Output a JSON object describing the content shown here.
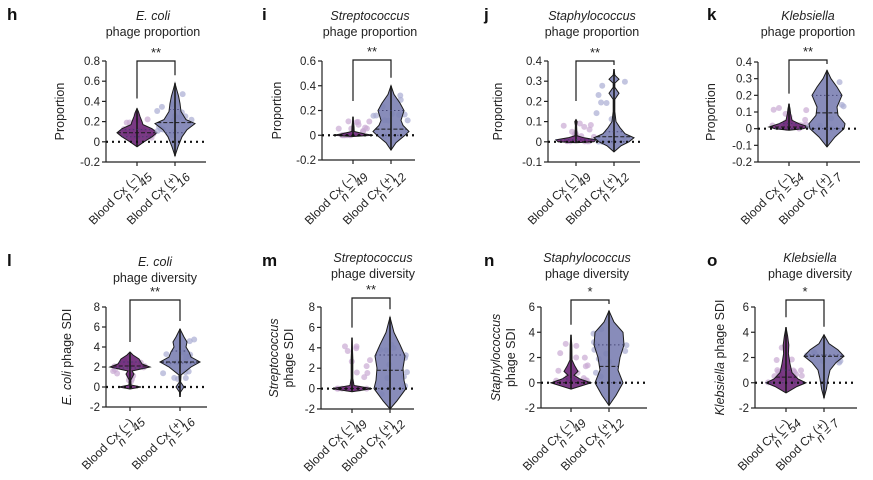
{
  "colors": {
    "neg_fill": "#6b2577",
    "neg_points": "#c9a9d3",
    "pos_fill": "#7b7fb3",
    "pos_points": "#a9acd3",
    "axis": "#222222"
  },
  "chart_data": [
    {
      "panel": "h",
      "type": "violin",
      "title_italic": "E. coli",
      "title_rest": "phage proportion",
      "ylabel": "Proportion",
      "ylabel_italic": "",
      "ylim": [
        -0.2,
        0.8
      ],
      "yticks": [
        -0.2,
        0,
        0.2,
        0.4,
        0.6,
        0.8
      ],
      "ytick_labels": [
        "-0.2",
        "0",
        "0.2",
        "0.4",
        "0.6",
        "0.8"
      ],
      "significance": "**",
      "categories": [
        {
          "label": "Blood Cx (−)",
          "n_label": "n = 45",
          "n": 45,
          "median": 0.09,
          "quartiles": [
            0.05,
            0.12
          ],
          "min": -0.05,
          "max": 0.33,
          "shape": [
            [
              -0.05,
              0.0
            ],
            [
              0.0,
              0.35
            ],
            [
              0.05,
              0.75
            ],
            [
              0.09,
              1.0
            ],
            [
              0.13,
              0.75
            ],
            [
              0.17,
              0.3
            ],
            [
              0.2,
              0.25
            ],
            [
              0.25,
              0.15
            ],
            [
              0.3,
              0.07
            ],
            [
              0.33,
              0.0
            ]
          ]
        },
        {
          "label": "Blood Cx (+)",
          "n_label": "n = 16",
          "n": 16,
          "median": 0.19,
          "quartiles": [
            0.09,
            0.32
          ],
          "min": -0.14,
          "max": 0.58,
          "shape": [
            [
              -0.14,
              0.0
            ],
            [
              -0.05,
              0.15
            ],
            [
              0.05,
              0.35
            ],
            [
              0.12,
              0.6
            ],
            [
              0.18,
              1.0
            ],
            [
              0.22,
              0.55
            ],
            [
              0.3,
              0.3
            ],
            [
              0.38,
              0.25
            ],
            [
              0.45,
              0.18
            ],
            [
              0.52,
              0.08
            ],
            [
              0.58,
              0.0
            ]
          ]
        }
      ]
    },
    {
      "panel": "i",
      "type": "violin",
      "title_italic": "Streptococcus",
      "title_rest": "phage proportion",
      "ylabel": "Proportion",
      "ylabel_italic": "",
      "ylim": [
        -0.2,
        0.6
      ],
      "yticks": [
        -0.2,
        0,
        0.2,
        0.4,
        0.6
      ],
      "ytick_labels": [
        "-0.2",
        "0",
        "0.2",
        "0.4",
        "0.6"
      ],
      "significance": "**",
      "categories": [
        {
          "label": "Blood Cx (−)",
          "n_label": "n = 49",
          "n": 49,
          "median": 0.0,
          "quartiles": [
            0.0,
            0.0
          ],
          "min": 0.0,
          "max": 0.15,
          "shape": [
            [
              -0.01,
              0.0
            ],
            [
              0.0,
              1.0
            ],
            [
              0.01,
              0.6
            ],
            [
              0.03,
              0.06
            ],
            [
              0.07,
              0.05
            ],
            [
              0.1,
              0.03
            ],
            [
              0.15,
              0.0
            ]
          ]
        },
        {
          "label": "Blood Cx (+)",
          "n_label": "n = 12",
          "n": 12,
          "median": 0.05,
          "quartiles": [
            0.0,
            0.2
          ],
          "min": -0.12,
          "max": 0.4,
          "shape": [
            [
              -0.12,
              0.0
            ],
            [
              -0.06,
              0.25
            ],
            [
              0.0,
              0.7
            ],
            [
              0.03,
              0.9
            ],
            [
              0.08,
              0.6
            ],
            [
              0.12,
              0.5
            ],
            [
              0.2,
              0.65
            ],
            [
              0.26,
              0.45
            ],
            [
              0.33,
              0.15
            ],
            [
              0.4,
              0.0
            ]
          ]
        }
      ]
    },
    {
      "panel": "j",
      "type": "violin",
      "title_italic": "Staphylococcus",
      "title_rest": "phage proportion",
      "ylabel": "Proportion",
      "ylabel_italic": "",
      "ylim": [
        -0.1,
        0.4
      ],
      "yticks": [
        -0.1,
        0,
        0.1,
        0.2,
        0.3,
        0.4
      ],
      "ytick_labels": [
        "-0.1",
        "0",
        "0.1",
        "0.2",
        "0.3",
        "0.4"
      ],
      "significance": "**",
      "categories": [
        {
          "label": "Blood Cx (−)",
          "n_label": "n = 49",
          "n": 49,
          "median": 0.0,
          "quartiles": [
            0.0,
            0.01
          ],
          "min": -0.005,
          "max": 0.11,
          "shape": [
            [
              -0.005,
              0.0
            ],
            [
              0.0,
              0.9
            ],
            [
              0.01,
              1.0
            ],
            [
              0.02,
              0.4
            ],
            [
              0.03,
              0.05
            ],
            [
              0.08,
              0.03
            ],
            [
              0.1,
              0.06
            ],
            [
              0.11,
              0.0
            ]
          ]
        },
        {
          "label": "Blood Cx (+)",
          "n_label": "n = 12",
          "n": 12,
          "median": 0.025,
          "quartiles": [
            0.0,
            0.05
          ],
          "min": -0.05,
          "max": 0.36,
          "shape": [
            [
              -0.05,
              0.0
            ],
            [
              -0.02,
              0.35
            ],
            [
              0.0,
              0.75
            ],
            [
              0.02,
              1.0
            ],
            [
              0.04,
              0.55
            ],
            [
              0.07,
              0.3
            ],
            [
              0.1,
              0.1
            ],
            [
              0.15,
              0.04
            ],
            [
              0.21,
              0.04
            ],
            [
              0.24,
              0.25
            ],
            [
              0.27,
              0.04
            ],
            [
              0.29,
              0.04
            ],
            [
              0.31,
              0.25
            ],
            [
              0.33,
              0.04
            ],
            [
              0.36,
              0.0
            ]
          ]
        }
      ]
    },
    {
      "panel": "k",
      "type": "violin",
      "title_italic": "Klebsiella",
      "title_rest": "phage proportion",
      "ylabel": "Proportion",
      "ylabel_italic": "",
      "ylim": [
        -0.2,
        0.4
      ],
      "yticks": [
        -0.2,
        -0.1,
        0,
        0.1,
        0.2,
        0.3,
        0.4
      ],
      "ytick_labels": [
        "-0.2",
        "-0.1",
        "0",
        "0.1",
        "0.2",
        "0.3",
        "0.4"
      ],
      "significance": "**",
      "categories": [
        {
          "label": "Blood Cx (−)",
          "n_label": "n = 54",
          "n": 54,
          "median": 0.01,
          "quartiles": [
            0.0,
            0.03
          ],
          "min": -0.01,
          "max": 0.15,
          "shape": [
            [
              -0.01,
              0.0
            ],
            [
              0.0,
              0.7
            ],
            [
              0.01,
              1.0
            ],
            [
              0.03,
              0.5
            ],
            [
              0.05,
              0.15
            ],
            [
              0.09,
              0.08
            ],
            [
              0.12,
              0.05
            ],
            [
              0.15,
              0.0
            ]
          ]
        },
        {
          "label": "Blood Cx (+)",
          "n_label": "n = 7",
          "n": 7,
          "median": 0.095,
          "quartiles": [
            0.0,
            0.2
          ],
          "min": -0.11,
          "max": 0.35,
          "shape": [
            [
              -0.11,
              0.0
            ],
            [
              -0.05,
              0.4
            ],
            [
              0.0,
              0.85
            ],
            [
              0.03,
              0.9
            ],
            [
              0.08,
              0.55
            ],
            [
              0.13,
              0.5
            ],
            [
              0.2,
              0.75
            ],
            [
              0.25,
              0.5
            ],
            [
              0.3,
              0.2
            ],
            [
              0.35,
              0.0
            ]
          ]
        }
      ]
    },
    {
      "panel": "l",
      "type": "violin",
      "title_italic": "E. coli",
      "title_rest": "phage diversity",
      "ylabel": "phage SDI",
      "ylabel_italic": "E. coli",
      "ylim": [
        -2,
        8
      ],
      "yticks": [
        -2,
        0,
        2,
        4,
        6,
        8
      ],
      "ytick_labels": [
        "-2",
        "0",
        "2",
        "4",
        "6",
        "8"
      ],
      "significance": "**",
      "categories": [
        {
          "label": "Blood Cx (−)",
          "n_label": "n = 45",
          "n": 45,
          "median": 2.1,
          "quartiles": [
            1.9,
            2.5
          ],
          "min": -0.2,
          "max": 3.5,
          "shape": [
            [
              -0.2,
              0.0
            ],
            [
              0.0,
              0.55
            ],
            [
              0.2,
              0.05
            ],
            [
              0.7,
              0.04
            ],
            [
              1.3,
              0.2
            ],
            [
              1.6,
              0.1
            ],
            [
              2.0,
              1.0
            ],
            [
              2.3,
              0.6
            ],
            [
              2.8,
              0.45
            ],
            [
              3.2,
              0.15
            ],
            [
              3.5,
              0.0
            ]
          ]
        },
        {
          "label": "Blood Cx (+)",
          "n_label": "n = 16",
          "n": 16,
          "median": 2.5,
          "quartiles": [
            2.4,
            3.6
          ],
          "min": -1.0,
          "max": 5.8,
          "shape": [
            [
              -1.0,
              0.0
            ],
            [
              -0.5,
              0.03
            ],
            [
              0.0,
              0.2
            ],
            [
              0.5,
              0.03
            ],
            [
              1.2,
              0.05
            ],
            [
              2.0,
              0.55
            ],
            [
              2.5,
              1.0
            ],
            [
              3.0,
              0.55
            ],
            [
              3.5,
              0.45
            ],
            [
              4.0,
              0.3
            ],
            [
              4.5,
              0.35
            ],
            [
              5.0,
              0.2
            ],
            [
              5.8,
              0.0
            ]
          ]
        }
      ]
    },
    {
      "panel": "m",
      "type": "violin",
      "title_italic": "Streptococcus",
      "title_rest": "phage diversity",
      "ylabel": "phage SDI",
      "ylabel_italic": "Streptococcus",
      "ylim": [
        -3,
        8
      ],
      "yticks": [
        -2,
        0,
        2,
        4,
        6,
        8
      ],
      "ytick_labels": [
        "-2",
        "0",
        "2",
        "4",
        "6",
        "8"
      ],
      "significance": "**",
      "categories": [
        {
          "label": "Blood Cx (−)",
          "n_label": "n = 49",
          "n": 49,
          "median": 0.0,
          "quartiles": [
            0.0,
            0.0
          ],
          "min": -0.3,
          "max": 5.0,
          "shape": [
            [
              -0.3,
              0.0
            ],
            [
              0.0,
              1.0
            ],
            [
              0.3,
              0.1
            ],
            [
              1.0,
              0.04
            ],
            [
              3.0,
              0.04
            ],
            [
              5.0,
              0.0
            ]
          ]
        },
        {
          "label": "Blood Cx (+)",
          "n_label": "n = 12",
          "n": 12,
          "median": 1.8,
          "quartiles": [
            0.0,
            3.3
          ],
          "min": -2.0,
          "max": 7.0,
          "shape": [
            [
              -2.0,
              0.0
            ],
            [
              -1.2,
              0.35
            ],
            [
              0.0,
              0.8
            ],
            [
              0.8,
              0.7
            ],
            [
              2.0,
              0.65
            ],
            [
              3.2,
              0.75
            ],
            [
              4.3,
              0.5
            ],
            [
              5.5,
              0.2
            ],
            [
              7.0,
              0.0
            ]
          ]
        }
      ]
    },
    {
      "panel": "n",
      "type": "violin",
      "title_italic": "Staphylococcus",
      "title_rest": "phage diversity",
      "ylabel": "phage SDI",
      "ylabel_italic": "Staphylococcus",
      "ylim": [
        -2,
        6
      ],
      "yticks": [
        -2,
        0,
        2,
        4,
        6
      ],
      "ytick_labels": [
        "-2",
        "0",
        "2",
        "4",
        "6"
      ],
      "significance": "*",
      "categories": [
        {
          "label": "Blood Cx (−)",
          "n_label": "n = 49",
          "n": 49,
          "median": 0.0,
          "quartiles": [
            0.0,
            0.3
          ],
          "min": -0.5,
          "max": 3.8,
          "shape": [
            [
              -0.5,
              0.0
            ],
            [
              0.0,
              1.0
            ],
            [
              0.3,
              0.45
            ],
            [
              0.6,
              0.15
            ],
            [
              0.9,
              0.35
            ],
            [
              1.3,
              0.2
            ],
            [
              1.8,
              0.05
            ],
            [
              3.0,
              0.04
            ],
            [
              3.8,
              0.0
            ]
          ]
        },
        {
          "label": "Blood Cx (+)",
          "n_label": "n = 12",
          "n": 12,
          "median": 1.3,
          "quartiles": [
            0.0,
            3.0
          ],
          "min": -1.8,
          "max": 5.7,
          "shape": [
            [
              -1.8,
              0.0
            ],
            [
              -1.0,
              0.35
            ],
            [
              0.0,
              0.7
            ],
            [
              1.0,
              0.45
            ],
            [
              2.0,
              0.55
            ],
            [
              3.0,
              0.75
            ],
            [
              4.0,
              0.7
            ],
            [
              4.8,
              0.25
            ],
            [
              5.7,
              0.0
            ]
          ]
        }
      ]
    },
    {
      "panel": "o",
      "type": "violin",
      "title_italic": "Klebsiella",
      "title_rest": "phage diversity",
      "ylabel": "phage SDI",
      "ylabel_italic": "Klebsiella",
      "ylim": [
        -2,
        6
      ],
      "yticks": [
        -2,
        0,
        2,
        4,
        6
      ],
      "ytick_labels": [
        "-2",
        "0",
        "2",
        "4",
        "6"
      ],
      "significance": "*",
      "categories": [
        {
          "label": "Blood Cx (−)",
          "n_label": "n = 54",
          "n": 54,
          "median": 0.45,
          "quartiles": [
            0.0,
            1.0
          ],
          "min": -0.8,
          "max": 4.4,
          "shape": [
            [
              -0.8,
              0.0
            ],
            [
              -0.3,
              0.55
            ],
            [
              0.0,
              1.0
            ],
            [
              0.3,
              0.6
            ],
            [
              0.8,
              0.3
            ],
            [
              1.5,
              0.2
            ],
            [
              2.3,
              0.12
            ],
            [
              3.0,
              0.14
            ],
            [
              3.7,
              0.08
            ],
            [
              4.4,
              0.0
            ]
          ]
        },
        {
          "label": "Blood Cx (+)",
          "n_label": "n = 7",
          "n": 7,
          "median": 2.1,
          "quartiles": [
            0.0,
            2.2
          ],
          "min": -1.2,
          "max": 3.8,
          "shape": [
            [
              -1.2,
              0.0
            ],
            [
              -0.5,
              0.12
            ],
            [
              0.3,
              0.2
            ],
            [
              1.0,
              0.3
            ],
            [
              1.6,
              0.6
            ],
            [
              2.1,
              1.0
            ],
            [
              2.6,
              0.7
            ],
            [
              3.1,
              0.25
            ],
            [
              3.8,
              0.0
            ]
          ]
        }
      ]
    }
  ]
}
